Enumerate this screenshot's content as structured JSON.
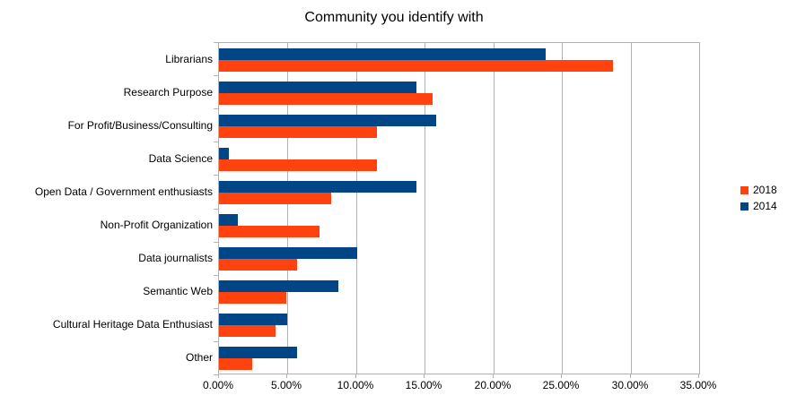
{
  "chart_data": {
    "type": "bar",
    "orientation": "horizontal",
    "title": "Community you identify with",
    "categories": [
      "Librarians",
      "Research Purpose",
      "For Profit/Business/Consulting",
      "Data Science",
      "Open Data / Government enthusiasts",
      "Non-Profit Organization",
      "Data journalists",
      "Semantic Web",
      "Cultural Heritage Data Enthusiast",
      "Other"
    ],
    "series": [
      {
        "name": "2018",
        "color": "#ff420e",
        "values": [
          28.7,
          15.6,
          11.5,
          11.5,
          8.2,
          7.3,
          5.7,
          4.9,
          4.1,
          2.4
        ]
      },
      {
        "name": "2014",
        "color": "#004586",
        "values": [
          23.8,
          14.4,
          15.8,
          0.7,
          14.4,
          1.4,
          10.1,
          8.7,
          5.0,
          5.7
        ]
      }
    ],
    "bar_order_top_to_bottom": [
      "2014",
      "2018"
    ],
    "x_ticks": [
      "0.00%",
      "5.00%",
      "10.00%",
      "15.00%",
      "20.00%",
      "25.00%",
      "30.00%",
      "35.00%"
    ],
    "xlim": [
      0,
      35
    ],
    "xlabel": "",
    "ylabel": "",
    "grid": true,
    "legend_position": "right",
    "axis_color": "#b3b3b3",
    "text_color": "#000000",
    "background": "#ffffff"
  }
}
